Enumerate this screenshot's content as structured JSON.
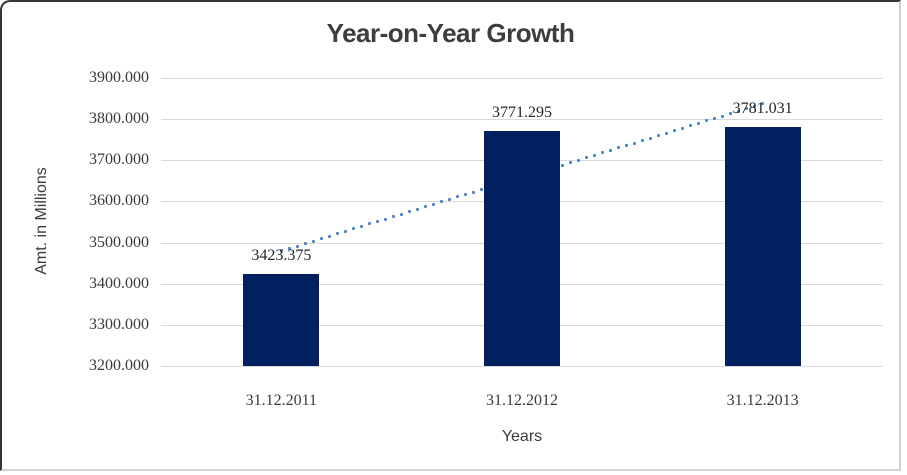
{
  "chart_data": {
    "type": "bar",
    "title": "Year-on-Year Growth",
    "categories": [
      "31.12.2011",
      "31.12.2012",
      "31.12.2013"
    ],
    "values": [
      3423.375,
      3771.295,
      3781.031
    ],
    "data_labels": [
      "3423.375",
      "3771.295",
      "3781.031"
    ],
    "xlabel": "Years",
    "ylabel": "Amt. in Millions",
    "ylim": [
      3200,
      3900
    ],
    "ytick_step": 100,
    "ytick_labels": [
      "3900.000",
      "3800.000",
      "3700.000",
      "3600.000",
      "3500.000",
      "3400.000",
      "3300.000",
      "3200.000"
    ],
    "grid": true,
    "legend": "none",
    "trendline": {
      "type": "linear",
      "style": "dotted",
      "start_value": 3479.7,
      "end_value": 3837.4
    },
    "colors": {
      "bar": "#002060",
      "trendline": "#4A86C8",
      "gridline": "#D9D9D9",
      "title_text": "#3D3D3D",
      "axis_text": "#3A3A3A",
      "label_text": "#262626"
    }
  }
}
